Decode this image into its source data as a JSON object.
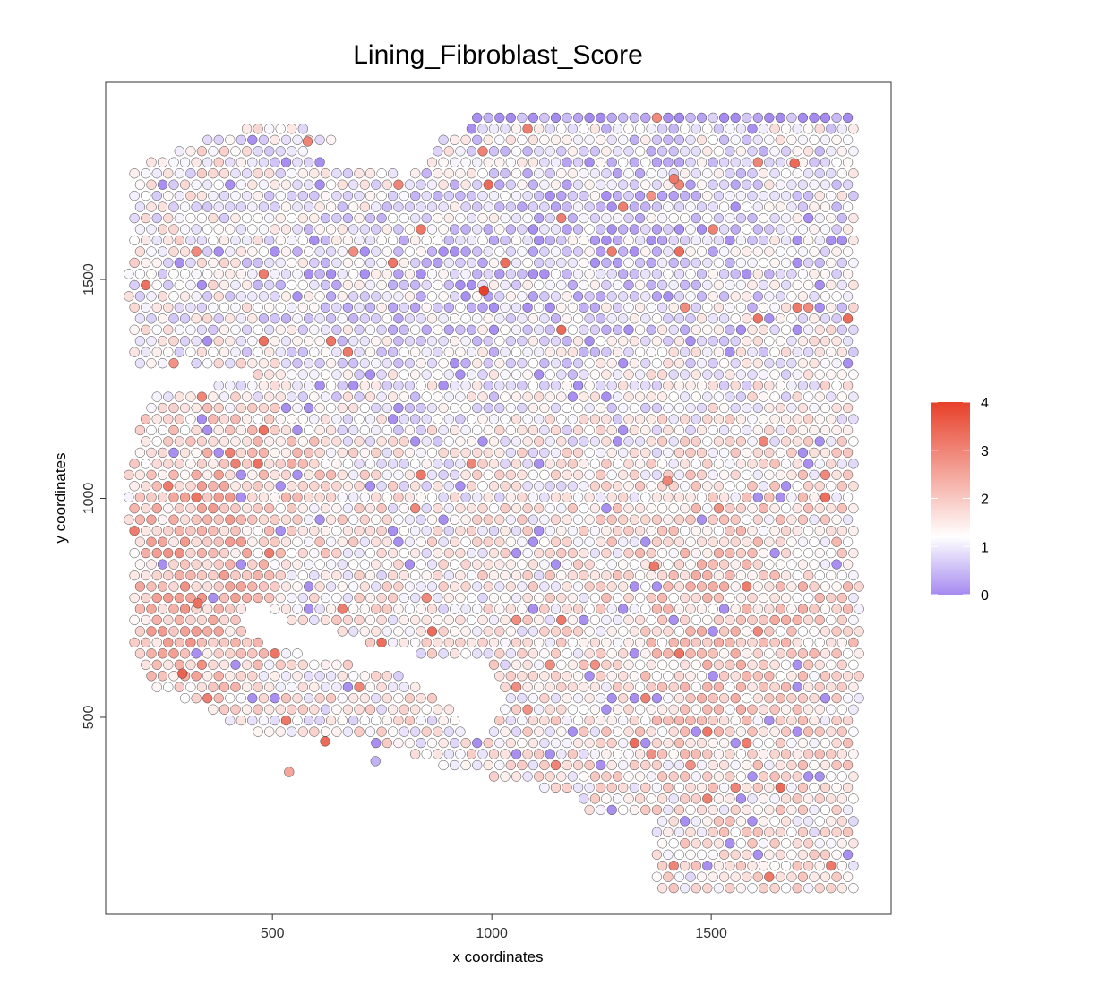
{
  "chart_data": {
    "type": "scatter",
    "title": "Lining_Fibroblast_Score",
    "xlabel": "x coordinates",
    "ylabel": "y coordinates",
    "xlim": [
      120,
      1910
    ],
    "ylim": [
      50,
      1950
    ],
    "x_ticks": [
      500,
      1000,
      1500
    ],
    "y_ticks": [
      500,
      1000,
      1500
    ],
    "grid": false,
    "legend": {
      "type": "colorbar",
      "position": "right",
      "min": 0,
      "max": 4,
      "ticks": [
        0,
        1,
        2,
        3,
        4
      ],
      "colors": {
        "low": "#a58af0",
        "mid": "#ffffff",
        "high": "#e8402a"
      },
      "midpoint": 1.2
    },
    "point_style": {
      "stroke": "#444444"
    },
    "points_note_values": "spots form a hexagonal grid over the tissue; value = Lining_Fibroblast_Score",
    "highlight_points": [
      {
        "x": 982,
        "y": 1475,
        "value": 4.0
      },
      {
        "x": 295,
        "y": 600,
        "value": 3.5
      },
      {
        "x": 330,
        "y": 760,
        "value": 3.3
      },
      {
        "x": 620,
        "y": 445,
        "value": 3.4
      },
      {
        "x": 1690,
        "y": 1765,
        "value": 3.4
      },
      {
        "x": 1415,
        "y": 1730,
        "value": 3.2
      },
      {
        "x": 1370,
        "y": 845,
        "value": 3.2
      },
      {
        "x": 538,
        "y": 375,
        "value": 2.5
      },
      {
        "x": 735,
        "y": 400,
        "value": 0.4
      },
      {
        "x": 1400,
        "y": 1040,
        "value": 3.0
      },
      {
        "x": 580,
        "y": 1815,
        "value": 3.0
      }
    ],
    "regions": {
      "purple_top_band": {
        "y_min": 1860,
        "value": 0.1
      },
      "red_left_cluster": {
        "x_range": [
          180,
          420
        ],
        "y_range": [
          600,
          900
        ],
        "value": 3.0
      }
    }
  }
}
